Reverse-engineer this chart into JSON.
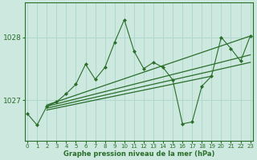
{
  "x": [
    0,
    1,
    2,
    3,
    4,
    5,
    6,
    7,
    8,
    9,
    10,
    11,
    12,
    13,
    14,
    15,
    16,
    17,
    18,
    19,
    20,
    21,
    22,
    23
  ],
  "y_main": [
    1026.78,
    1026.6,
    1026.9,
    1026.97,
    1027.1,
    1027.25,
    1027.57,
    1027.33,
    1027.52,
    1027.92,
    1028.28,
    1027.78,
    1027.5,
    1027.6,
    1027.52,
    1027.32,
    1026.62,
    1026.65,
    1027.22,
    1027.38,
    1028.0,
    1027.82,
    1027.62,
    1028.02
  ],
  "trend_lines": [
    [
      [
        2,
        23
      ],
      [
        1026.92,
        1028.02
      ]
    ],
    [
      [
        2,
        23
      ],
      [
        1026.9,
        1027.72
      ]
    ],
    [
      [
        2,
        23
      ],
      [
        1026.87,
        1027.6
      ]
    ],
    [
      [
        2,
        19
      ],
      [
        1026.84,
        1027.38
      ]
    ]
  ],
  "bg_color": "#cce8df",
  "line_color": "#2a6e2a",
  "grid_color": "#b0d8cc",
  "xlabel": "Graphe pression niveau de la mer (hPa)",
  "yticks": [
    1027,
    1028
  ],
  "xticks": [
    0,
    1,
    2,
    3,
    4,
    5,
    6,
    7,
    8,
    9,
    10,
    11,
    12,
    13,
    14,
    15,
    16,
    17,
    18,
    19,
    20,
    21,
    22,
    23
  ],
  "ylim": [
    1026.35,
    1028.55
  ],
  "xlim": [
    -0.3,
    23.3
  ],
  "figsize": [
    3.2,
    2.0
  ],
  "dpi": 100
}
